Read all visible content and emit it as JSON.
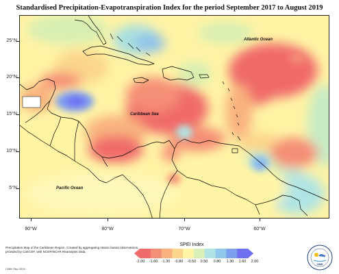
{
  "title": "Standardised Precipitation-Evapotranspiration Index for the period September 2017 to August 2019",
  "map": {
    "y_axis_labels": [
      "25°N",
      "20°N",
      "15°N",
      "10°N",
      "5°N"
    ],
    "x_axis_labels": [
      "90°W",
      "80°W",
      "70°W",
      "60°W"
    ],
    "ocean_labels": {
      "atlantic": "Atlantic Ocean",
      "caribbean": "Caribbean Sea",
      "pacific": "Pacific Ocean"
    }
  },
  "footnote": {
    "text": "Precipitation Map of the Caribbean Region. Created by aggregating station based observations, provided by CariCOF, with NCEP/NCAR Reanalysis Data.",
    "credit": "CIMH Sep-2019"
  },
  "legend": {
    "title": "SPEI Index",
    "tick_labels": [
      "-2.00",
      "-1.60",
      "-1.30",
      "-0.80",
      "-0.50",
      "0.50",
      "0.80",
      "1.30",
      "1.60",
      "2.00"
    ],
    "colors": [
      "#f06b6b",
      "#f58e76",
      "#f9b27f",
      "#fbd58c",
      "#fff5a6",
      "#d6f0b8",
      "#b0e4e4",
      "#92c7ec",
      "#7e9ef0",
      "#6f6ff2"
    ]
  },
  "logo": {
    "text": "CIMH"
  }
}
